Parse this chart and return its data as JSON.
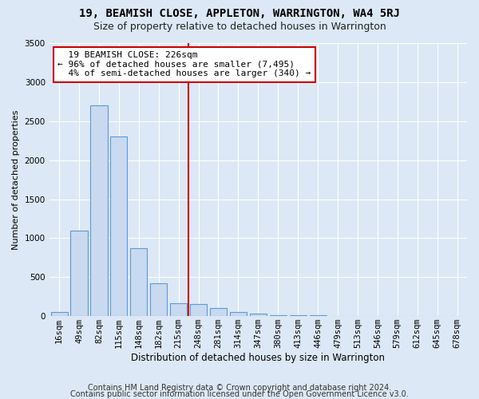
{
  "title": "19, BEAMISH CLOSE, APPLETON, WARRINGTON, WA4 5RJ",
  "subtitle": "Size of property relative to detached houses in Warrington",
  "xlabel": "Distribution of detached houses by size in Warrington",
  "ylabel": "Number of detached properties",
  "footer_line1": "Contains HM Land Registry data © Crown copyright and database right 2024.",
  "footer_line2": "Contains public sector information licensed under the Open Government Licence v3.0.",
  "bar_labels": [
    "16sqm",
    "49sqm",
    "82sqm",
    "115sqm",
    "148sqm",
    "182sqm",
    "215sqm",
    "248sqm",
    "281sqm",
    "314sqm",
    "347sqm",
    "380sqm",
    "413sqm",
    "446sqm",
    "479sqm",
    "513sqm",
    "546sqm",
    "579sqm",
    "612sqm",
    "645sqm",
    "678sqm"
  ],
  "bar_values": [
    50,
    1100,
    2700,
    2300,
    870,
    420,
    170,
    160,
    105,
    50,
    30,
    15,
    10,
    10,
    5,
    5,
    3,
    3,
    2,
    2,
    2
  ],
  "bar_color": "#c9d9ef",
  "bar_edge_color": "#5b9bd5",
  "pct_smaller": 96,
  "count_smaller": 7495,
  "pct_larger": 4,
  "count_larger": 340,
  "vline_bar_index": 6,
  "ylim_max": 3500,
  "background_color": "#dce8f5",
  "grid_color": "#ffffff",
  "title_fontsize": 10,
  "subtitle_fontsize": 9,
  "axis_label_fontsize": 8,
  "tick_fontsize": 7.5,
  "annotation_fontsize": 8,
  "footer_fontsize": 7
}
